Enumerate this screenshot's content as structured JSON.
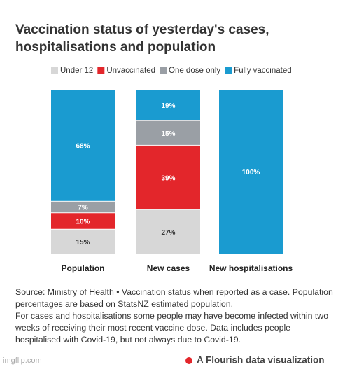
{
  "chart_data": {
    "type": "stacked-bar",
    "title": "Vaccination status of yesterday's cases, hospitalisations and population",
    "categories": [
      "Population",
      "New cases",
      "New hospitalisations"
    ],
    "series": [
      {
        "name": "Under 12",
        "color": "#d7d7d7",
        "values": [
          15,
          27,
          0
        ],
        "value_labels": [
          "15%",
          "27%",
          null
        ]
      },
      {
        "name": "Unvaccinated",
        "color": "#e3262b",
        "values": [
          10,
          39,
          0
        ],
        "value_labels": [
          "10%",
          "39%",
          null
        ]
      },
      {
        "name": "One dose only",
        "color": "#9a9fa5",
        "values": [
          7,
          15,
          0
        ],
        "value_labels": [
          "7%",
          "15%",
          null
        ]
      },
      {
        "name": "Fully vaccinated",
        "color": "#1a9bd0",
        "values": [
          68,
          19,
          100
        ],
        "value_labels": [
          "68%",
          "19%",
          "100%"
        ]
      }
    ],
    "notes": [
      "Source: Ministry of Health • Vaccination status when reported as a case. Population percentages are based on StatsNZ estimated population.",
      "For cases and hospitalisations some people may have become infected within two weeks of receiving their most recent vaccine dose. Data includes people hospitalised with Covid-19, but not always due to Covid-19."
    ],
    "credit": "A Flourish data visualization",
    "watermark": "imgflip.com"
  }
}
